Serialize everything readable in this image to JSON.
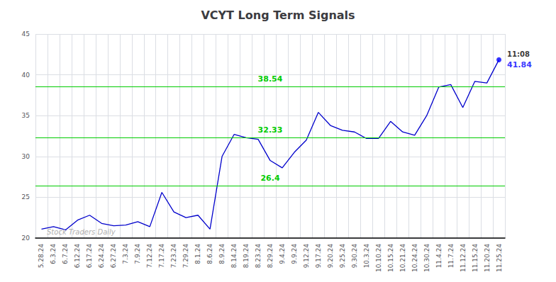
{
  "chart_data": {
    "type": "line",
    "title": "VCYT Long Term Signals",
    "categories": [
      "5.28.24",
      "6.3.24",
      "6.7.24",
      "6.12.24",
      "6.17.24",
      "6.24.24",
      "6.27.24",
      "7.3.24",
      "7.9.24",
      "7.12.24",
      "7.17.24",
      "7.23.24",
      "7.29.24",
      "8.1.24",
      "8.6.24",
      "8.9.24",
      "8.14.24",
      "8.19.24",
      "8.23.24",
      "8.29.24",
      "9.4.24",
      "9.9.24",
      "9.12.24",
      "9.17.24",
      "9.20.24",
      "9.25.24",
      "9.30.24",
      "10.3.24",
      "10.10.24",
      "10.15.24",
      "10.21.24",
      "10.24.24",
      "10.30.24",
      "11.4.24",
      "11.7.24",
      "11.12.24",
      "11.15.24",
      "11.20.24",
      "11.25.24"
    ],
    "values": [
      21.1,
      21.4,
      21.0,
      22.2,
      22.8,
      21.8,
      21.5,
      21.6,
      22.0,
      21.4,
      25.6,
      23.2,
      22.5,
      22.8,
      21.1,
      30.0,
      32.7,
      32.3,
      32.1,
      29.5,
      28.6,
      30.5,
      32.0,
      35.4,
      33.8,
      33.2,
      33.0,
      32.2,
      32.2,
      34.3,
      33.0,
      32.6,
      35.0,
      38.5,
      38.8,
      36.0,
      39.2,
      39.0,
      41.84
    ],
    "color": "#0000cc",
    "hlines": [
      26.4,
      32.33,
      38.54
    ],
    "hline_color": "#00cc00",
    "end_marker_color": "#0000ff",
    "annotations": [
      {
        "text": "11:08",
        "color": "black"
      },
      {
        "text": "41.84",
        "color": "blue"
      }
    ],
    "watermark": "Stock Traders Daily",
    "ylim": [
      20,
      45
    ],
    "yticks": [
      20,
      25,
      30,
      35,
      40,
      45
    ],
    "grid": true
  }
}
